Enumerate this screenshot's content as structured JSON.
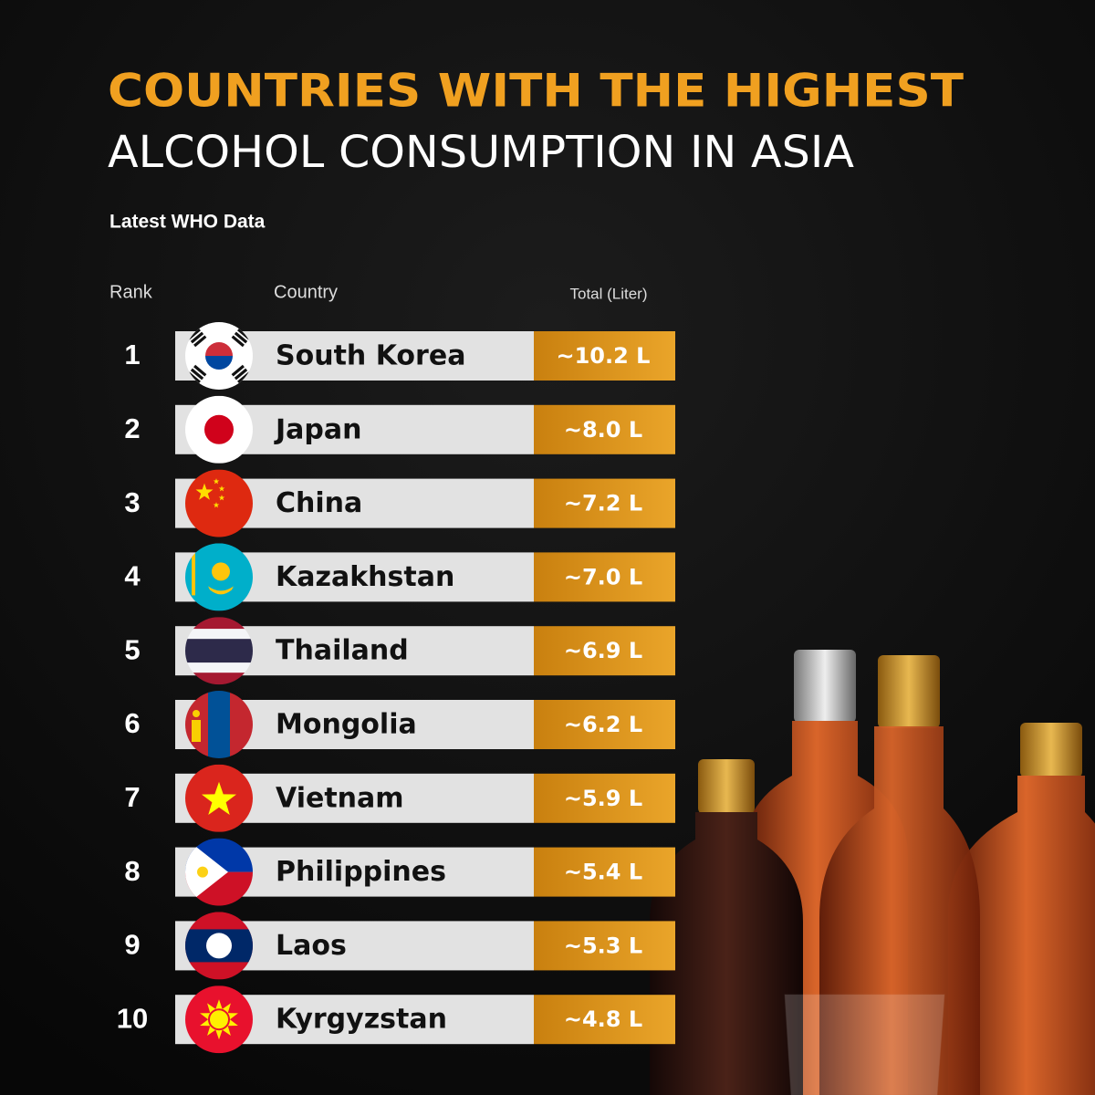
{
  "header": {
    "title_line1": "COUNTRIES WITH THE HIGHEST",
    "title_line2": "ALCOHOL CONSUMPTION IN ASIA",
    "subtitle": "Latest WHO Data"
  },
  "table": {
    "columns": [
      "Rank",
      "Country",
      "Total (Liter)"
    ],
    "rows": [
      [
        1,
        "South Korea",
        "~10.2 L"
      ],
      [
        2,
        "Japan",
        "~8.0 L"
      ],
      [
        3,
        "China",
        "~7.2 L"
      ],
      [
        4,
        "Kazakhstan",
        "~7.0 L"
      ],
      [
        5,
        "Thailand",
        "~6.9 L"
      ],
      [
        6,
        "Mongolia",
        "~6.2 L"
      ],
      [
        7,
        "Vietnam",
        "~5.9 L"
      ],
      [
        8,
        "Philippines",
        "~5.4 L"
      ],
      [
        9,
        "Laos",
        "~5.3 L"
      ],
      [
        10,
        "Kyrgyzstan",
        "~4.8 L"
      ]
    ]
  }
}
